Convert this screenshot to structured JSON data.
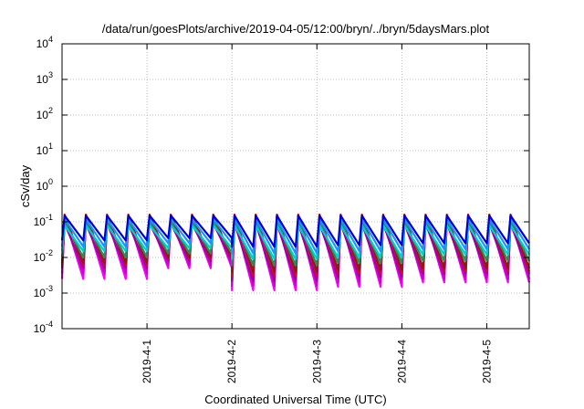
{
  "chart_data": {
    "type": "line",
    "title": "/data/run/goesPlots/archive/2019-04-05/12:00/bryn/../bryn/5daysMars.plot",
    "xlabel": "Coordinated Universal Time (UTC)",
    "ylabel": "cSv/day",
    "yscale": "log",
    "ylim": [
      0.0001,
      10000
    ],
    "xlim": [
      "2019-03-31T00:00",
      "2019-04-05T12:00"
    ],
    "grid": true,
    "legend": "none",
    "x_ticks": [
      "2019-4-1",
      "2019-4-2",
      "2019-4-3",
      "2019-4-4",
      "2019-4-5"
    ],
    "y_ticks": [
      {
        "value": 0.0001,
        "base": "10",
        "exp": "-4"
      },
      {
        "value": 0.001,
        "base": "10",
        "exp": "-3"
      },
      {
        "value": 0.01,
        "base": "10",
        "exp": "-2"
      },
      {
        "value": 0.1,
        "base": "10",
        "exp": "-1"
      },
      {
        "value": 1,
        "base": "10",
        "exp": "0"
      },
      {
        "value": 10,
        "base": "10",
        "exp": "1"
      },
      {
        "value": 100,
        "base": "10",
        "exp": "2"
      },
      {
        "value": 1000,
        "base": "10",
        "exp": "3"
      },
      {
        "value": 10000,
        "base": "10",
        "exp": "4"
      }
    ],
    "sawtooth_period_hours": 6,
    "series": [
      {
        "color": "#ff00ff",
        "peak": 0.13,
        "trough_day1": 0.0025,
        "trough_day2": 0.005,
        "trough_day3": 0.0012,
        "trough_day4": 0.0015,
        "trough_day5": 0.002
      },
      {
        "color": "#cc00cc",
        "peak": 0.11,
        "trough_day1": 0.0035,
        "trough_day2": 0.006,
        "trough_day3": 0.0016,
        "trough_day4": 0.002,
        "trough_day5": 0.0025
      },
      {
        "color": "#990099",
        "peak": 0.09,
        "trough_day1": 0.005,
        "trough_day2": 0.008,
        "trough_day3": 0.0022,
        "trough_day4": 0.0028,
        "trough_day5": 0.0035
      },
      {
        "color": "#c8102e",
        "peak": 0.16,
        "trough_day1": 0.006,
        "trough_day2": 0.009,
        "trough_day3": 0.003,
        "trough_day4": 0.0035,
        "trough_day5": 0.004
      },
      {
        "color": "#8b1a1a",
        "peak": 0.14,
        "trough_day1": 0.007,
        "trough_day2": 0.01,
        "trough_day3": 0.004,
        "trough_day4": 0.0045,
        "trough_day5": 0.005
      },
      {
        "color": "#2e8b57",
        "peak": 0.1,
        "trough_day1": 0.01,
        "trough_day2": 0.013,
        "trough_day3": 0.006,
        "trough_day4": 0.007,
        "trough_day5": 0.008
      },
      {
        "color": "#00ced1",
        "peak": 0.08,
        "trough_day1": 0.015,
        "trough_day2": 0.018,
        "trough_day3": 0.009,
        "trough_day4": 0.01,
        "trough_day5": 0.012
      },
      {
        "color": "#1e90ff",
        "peak": 0.12,
        "trough_day1": 0.02,
        "trough_day2": 0.025,
        "trough_day3": 0.013,
        "trough_day4": 0.015,
        "trough_day5": 0.017
      },
      {
        "color": "#0000cd",
        "peak": 0.15,
        "trough_day1": 0.03,
        "trough_day2": 0.035,
        "trough_day3": 0.02,
        "trough_day4": 0.022,
        "trough_day5": 0.025
      }
    ]
  }
}
